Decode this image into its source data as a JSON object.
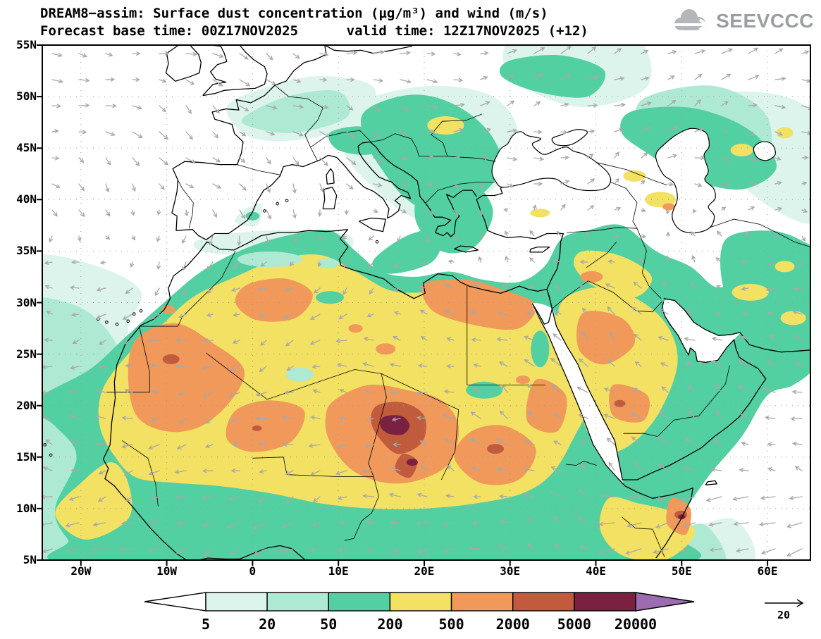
{
  "header": {
    "title_line1": "DREAM8−assim: Surface dust concentration (μg/m³) and wind (m/s)",
    "title_line2": "Forecast base time: 00Z17NOV2025      valid time: 12Z17NOV2025 (+12)",
    "logo_text": "SEEVCCC"
  },
  "axes": {
    "lat_ticks": [
      "55N",
      "50N",
      "45N",
      "40N",
      "35N",
      "30N",
      "25N",
      "20N",
      "15N",
      "10N",
      "5N"
    ],
    "lon_ticks": [
      "20W",
      "10W",
      "0",
      "10E",
      "20E",
      "30E",
      "40E",
      "50E",
      "60E"
    ]
  },
  "colorbar": {
    "labels": [
      "5",
      "20",
      "50",
      "200",
      "500",
      "2000",
      "5000",
      "20000"
    ],
    "segments": [
      {
        "range": "<5",
        "color": "#ffffff"
      },
      {
        "range": "5-20",
        "color": "#dcf4ec"
      },
      {
        "range": "20-50",
        "color": "#aee9d4"
      },
      {
        "range": "50-200",
        "color": "#52d0a2"
      },
      {
        "range": "200-500",
        "color": "#f2e162"
      },
      {
        "range": "500-2000",
        "color": "#f0995a"
      },
      {
        "range": "2000-5000",
        "color": "#c05b3d"
      },
      {
        "range": "5000-20000",
        "color": "#7a2040"
      },
      {
        "range": ">20000",
        "color": "#9c6bb0"
      }
    ]
  },
  "wind_reference": {
    "label": "20",
    "units": "m/s"
  },
  "chart_data": {
    "type": "heatmap",
    "title": "DREAM8−assim: Surface dust concentration (μg/m³) and wind (m/s)",
    "model": "DREAM8−assim",
    "variable": "Surface dust concentration",
    "units": "μg/m³",
    "wind_units": "m/s",
    "forecast_base_time": "00Z17NOV2025",
    "valid_time": "12Z17NOV2025",
    "lead": "+12",
    "x_axis": {
      "ticks": [
        "20W",
        "10W",
        "0",
        "10E",
        "20E",
        "30E",
        "40E",
        "50E",
        "60E"
      ],
      "range_deg_lon": [
        -24.5,
        65
      ]
    },
    "y_axis": {
      "ticks": [
        "55N",
        "50N",
        "45N",
        "40N",
        "35N",
        "30N",
        "25N",
        "20N",
        "15N",
        "10N",
        "5N"
      ],
      "range_deg_lat": [
        5,
        55
      ]
    },
    "contour_levels_ugm3": [
      5,
      20,
      50,
      200,
      500,
      2000,
      5000,
      20000
    ],
    "level_colors": [
      "#ffffff",
      "#dcf4ec",
      "#aee9d4",
      "#52d0a2",
      "#f2e162",
      "#f0995a",
      "#c05b3d",
      "#7a2040",
      "#9c6bb0"
    ],
    "wind_reference_ms": 20,
    "wind_arrow_color": "#a8a8a8",
    "dust_pattern_summary": [
      {
        "level_ugm3": "5000-20000",
        "areas": "Bodélé region Chad (~15-19E, 14-19N); NE Somalia coast (~50E, 9N)"
      },
      {
        "level_ugm3": "2000-5000",
        "areas": "central Chad/Niger; E Mauritania (~9W, 24N); Sudan (~28E, 16N); S Saudi Arabia (~43E, 20N); NE Somalia"
      },
      {
        "level_ugm3": "500-2000",
        "areas": "Mauritania/W Sahara, central Algeria, Mali-Niger, Chad, Sudan, NE Libya-N Egypt coast, N and S Saudi Arabia"
      },
      {
        "level_ugm3": "200-500",
        "areas": "Sahara belt ~11-32N from Atlantic to Red Sea, central Arabia, Horn of Africa, spots over SE Europe, Caucasus, Central Asia, SE Iran"
      },
      {
        "level_ugm3": "50-200",
        "areas": "most of N Africa, Sahel, Middle East, E Mediterranean, Balkans, around Black Sea and Caspian, tropical Atlantic 5-20N"
      },
      {
        "level_ugm3": "5-50",
        "areas": "subtropical Atlantic fringe, W/Central Europe, Russia, Central Asia fringes, NW Indian Ocean"
      }
    ],
    "wind_summary": "Gray wind vectors; SE-ward flow over NE Atlantic and Europe, E/NE trades over Sahara and Sahel turning SW-ward, strong SW-ward flow over NW Indian Ocean; reference vector 20 m/s"
  }
}
